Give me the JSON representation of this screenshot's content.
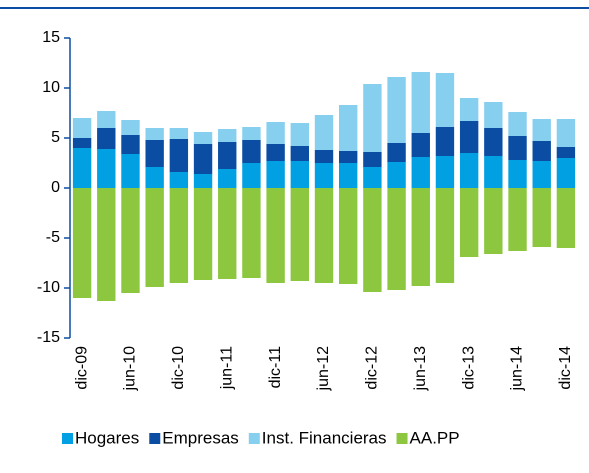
{
  "chart_data": {
    "type": "bar",
    "stacked": true,
    "categories": [
      "dic-09",
      null,
      "jun-10",
      null,
      "dic-10",
      null,
      "jun-11",
      null,
      "dic-11",
      null,
      "jun-12",
      null,
      "dic-12",
      null,
      "jun-13",
      null,
      "dic-13",
      null,
      "jun-14",
      null,
      "dic-14"
    ],
    "series": [
      {
        "name": "Hogares",
        "color": "#00a0e3",
        "values": [
          4.0,
          3.9,
          3.4,
          2.1,
          1.6,
          1.4,
          1.9,
          2.5,
          2.7,
          2.7,
          2.5,
          2.5,
          2.1,
          2.6,
          3.1,
          3.2,
          3.5,
          3.2,
          2.8,
          2.7,
          3.0
        ]
      },
      {
        "name": "Empresas",
        "color": "#0b4da2",
        "values": [
          1.0,
          2.1,
          1.9,
          2.7,
          3.3,
          3.0,
          2.7,
          2.3,
          1.7,
          1.5,
          1.3,
          1.2,
          1.5,
          1.9,
          2.4,
          2.9,
          3.2,
          2.8,
          2.4,
          2.0,
          1.1
        ]
      },
      {
        "name": "Inst. Financieras",
        "color": "#87cfef",
        "values": [
          2.0,
          1.7,
          1.5,
          1.2,
          1.1,
          1.2,
          1.3,
          1.3,
          2.2,
          2.3,
          3.5,
          4.6,
          6.8,
          6.6,
          6.1,
          5.4,
          2.3,
          2.6,
          2.4,
          2.2,
          2.8
        ]
      },
      {
        "name": "AA.PP",
        "color": "#8dc63f",
        "values": [
          -11.0,
          -11.3,
          -10.5,
          -9.9,
          -9.5,
          -9.2,
          -9.1,
          -9.0,
          -9.5,
          -9.3,
          -9.5,
          -9.6,
          -10.4,
          -10.2,
          -9.8,
          -9.5,
          -6.9,
          -6.6,
          -6.3,
          -5.9,
          -6.0
        ]
      }
    ],
    "ylim": [
      -15,
      15
    ],
    "yticks": [
      -15,
      -10,
      -5,
      0,
      5,
      10,
      15
    ]
  }
}
